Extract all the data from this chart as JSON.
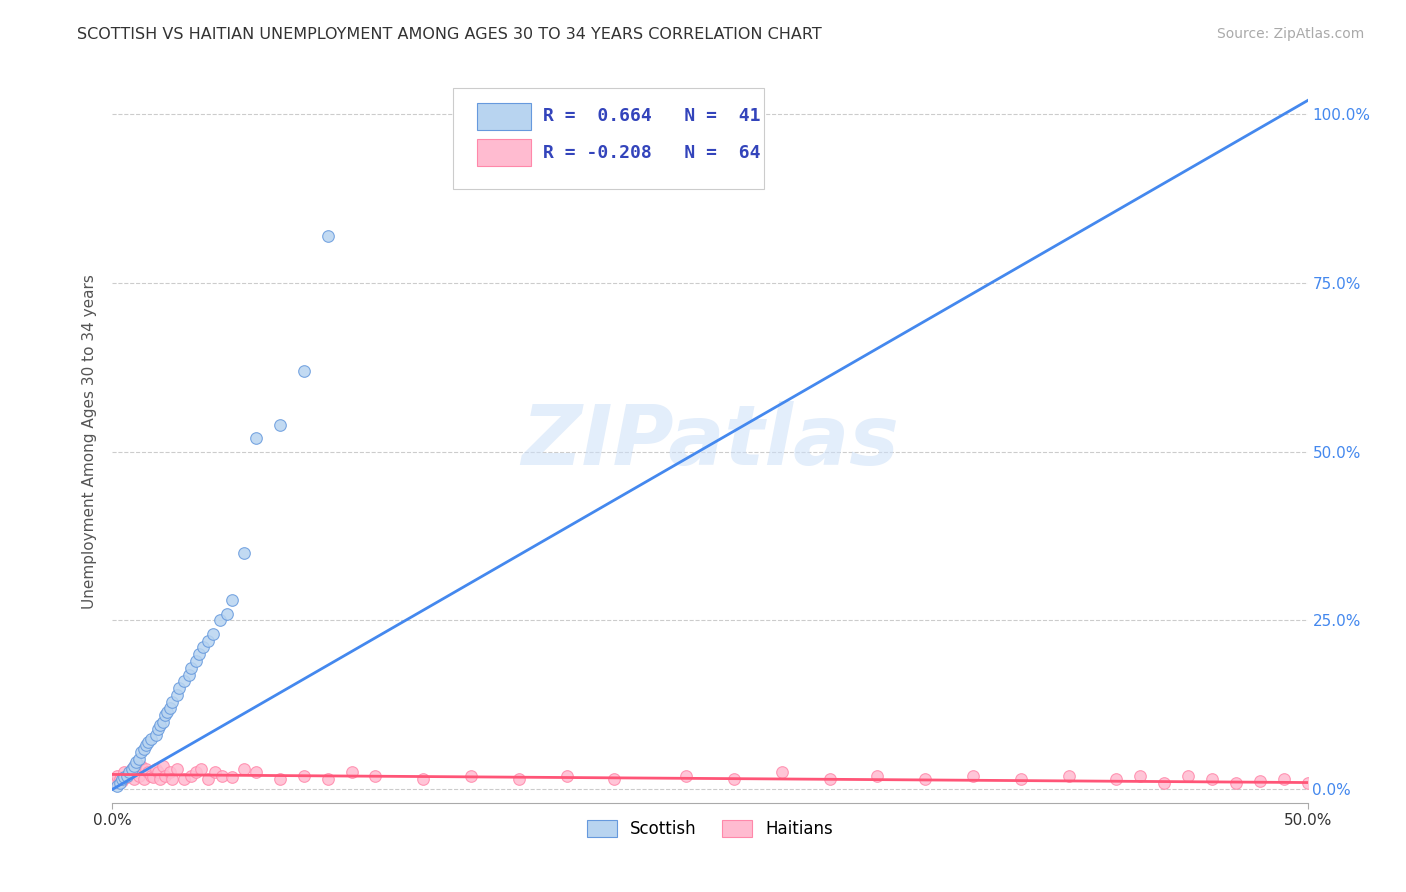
{
  "title": "SCOTTISH VS HAITIAN UNEMPLOYMENT AMONG AGES 30 TO 34 YEARS CORRELATION CHART",
  "source": "Source: ZipAtlas.com",
  "ylabel": "Unemployment Among Ages 30 to 34 years",
  "xlim": [
    0.0,
    0.5
  ],
  "ylim": [
    -0.02,
    1.05
  ],
  "xticks": [
    0.0,
    0.5
  ],
  "yticks": [
    0.0,
    0.25,
    0.5,
    0.75,
    1.0
  ],
  "xticklabels": [
    "0.0%",
    "50.0%"
  ],
  "yticklabels": [
    "0.0%",
    "25.0%",
    "50.0%",
    "75.0%",
    "100.0%"
  ],
  "background_color": "#ffffff",
  "grid_color": "#cccccc",
  "scottish_color": "#b8d4f0",
  "haitian_color": "#ffbbd0",
  "scottish_edge_color": "#6699dd",
  "haitian_edge_color": "#ff88aa",
  "scottish_line_color": "#4488ee",
  "haitian_line_color": "#ff5577",
  "legend_box_color": "#f5f5ff",
  "legend_edge_color": "#cccccc",
  "legend_text_color": "#3344bb",
  "legend_R_scottish": "R =  0.664",
  "legend_N_scottish": "N =  41",
  "legend_R_haitian": "R = -0.208",
  "legend_N_haitian": "N =  64",
  "watermark": "ZIPatlas",
  "scottish_x": [
    0.002,
    0.003,
    0.004,
    0.005,
    0.006,
    0.007,
    0.008,
    0.009,
    0.01,
    0.011,
    0.012,
    0.013,
    0.014,
    0.015,
    0.016,
    0.018,
    0.019,
    0.02,
    0.021,
    0.022,
    0.023,
    0.024,
    0.025,
    0.027,
    0.028,
    0.03,
    0.032,
    0.033,
    0.035,
    0.036,
    0.038,
    0.04,
    0.042,
    0.045,
    0.048,
    0.05,
    0.055,
    0.06,
    0.07,
    0.08,
    0.09
  ],
  "scottish_y": [
    0.005,
    0.01,
    0.015,
    0.018,
    0.02,
    0.025,
    0.03,
    0.035,
    0.04,
    0.045,
    0.055,
    0.06,
    0.065,
    0.07,
    0.075,
    0.08,
    0.09,
    0.095,
    0.1,
    0.11,
    0.115,
    0.12,
    0.13,
    0.14,
    0.15,
    0.16,
    0.17,
    0.18,
    0.19,
    0.2,
    0.21,
    0.22,
    0.23,
    0.25,
    0.26,
    0.28,
    0.35,
    0.52,
    0.54,
    0.62,
    0.82
  ],
  "haitian_x": [
    0.0,
    0.001,
    0.002,
    0.003,
    0.004,
    0.005,
    0.006,
    0.007,
    0.008,
    0.009,
    0.01,
    0.011,
    0.012,
    0.013,
    0.014,
    0.015,
    0.016,
    0.017,
    0.018,
    0.019,
    0.02,
    0.021,
    0.022,
    0.024,
    0.025,
    0.027,
    0.03,
    0.033,
    0.035,
    0.037,
    0.04,
    0.043,
    0.046,
    0.05,
    0.055,
    0.06,
    0.07,
    0.08,
    0.09,
    0.1,
    0.11,
    0.13,
    0.15,
    0.17,
    0.19,
    0.21,
    0.24,
    0.26,
    0.28,
    0.3,
    0.32,
    0.34,
    0.36,
    0.38,
    0.4,
    0.42,
    0.43,
    0.44,
    0.45,
    0.46,
    0.47,
    0.48,
    0.49,
    0.5
  ],
  "haitian_y": [
    0.015,
    0.01,
    0.02,
    0.015,
    0.012,
    0.025,
    0.018,
    0.022,
    0.03,
    0.015,
    0.025,
    0.02,
    0.035,
    0.015,
    0.03,
    0.025,
    0.02,
    0.018,
    0.03,
    0.025,
    0.015,
    0.035,
    0.02,
    0.025,
    0.015,
    0.03,
    0.015,
    0.02,
    0.025,
    0.03,
    0.015,
    0.025,
    0.02,
    0.018,
    0.03,
    0.025,
    0.015,
    0.02,
    0.015,
    0.025,
    0.02,
    0.015,
    0.02,
    0.015,
    0.02,
    0.015,
    0.02,
    0.015,
    0.025,
    0.015,
    0.02,
    0.015,
    0.02,
    0.015,
    0.02,
    0.015,
    0.02,
    0.01,
    0.02,
    0.015,
    0.01,
    0.012,
    0.015,
    0.01
  ],
  "scottish_line_x": [
    0.0,
    0.5
  ],
  "scottish_line_y": [
    0.0,
    1.02
  ],
  "haitian_line_x": [
    0.0,
    0.5
  ],
  "haitian_line_y": [
    0.022,
    0.01
  ]
}
